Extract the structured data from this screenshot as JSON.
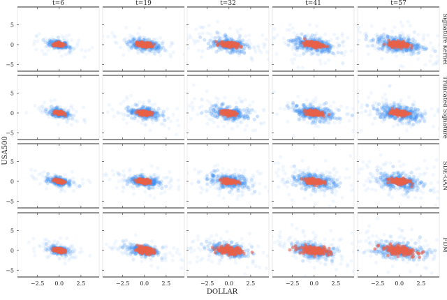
{
  "chart_data": {
    "type": "scatter",
    "xlabel": "DOLLAR",
    "ylabel": "USA500",
    "xlim": [
      -4.8,
      4.6
    ],
    "ylim": [
      -6.7,
      9.5
    ],
    "xticks": [
      -2.5,
      0.0,
      2.5
    ],
    "xtick_labels": [
      "−2.5",
      "0.0",
      "2.5"
    ],
    "yticks": [
      5,
      0,
      -5
    ],
    "ytick_labels": [
      "5",
      "0",
      "−5"
    ],
    "columns": [
      "t=6",
      "t=19",
      "t=32",
      "t=41",
      "t=57"
    ],
    "rows": [
      "Signature Kernel",
      "Truncated Signature",
      "SDE-GAN",
      "FDM"
    ],
    "colors": {
      "real": "#3a8ef0",
      "generated": "#e8604a"
    },
    "real_std": [
      [
        0.55,
        0.5
      ],
      [
        0.85,
        0.7
      ],
      [
        1.05,
        0.85
      ],
      [
        1.15,
        0.95
      ],
      [
        1.25,
        1.0
      ]
    ],
    "generated_std": [
      [
        [
          0.28,
          0.22
        ],
        [
          0.42,
          0.3
        ],
        [
          0.5,
          0.34
        ],
        [
          0.55,
          0.36
        ],
        [
          0.6,
          0.38
        ]
      ],
      [
        [
          0.26,
          0.2
        ],
        [
          0.38,
          0.27
        ],
        [
          0.42,
          0.3
        ],
        [
          0.48,
          0.32
        ],
        [
          0.5,
          0.34
        ]
      ],
      [
        [
          0.25,
          0.2
        ],
        [
          0.38,
          0.28
        ],
        [
          0.45,
          0.3
        ],
        [
          0.5,
          0.34
        ],
        [
          0.55,
          0.36
        ]
      ],
      [
        [
          0.3,
          0.25
        ],
        [
          0.55,
          0.4
        ],
        [
          0.75,
          0.5
        ],
        [
          0.9,
          0.55
        ],
        [
          1.0,
          0.6
        ]
      ]
    ],
    "correlation": -0.35
  }
}
